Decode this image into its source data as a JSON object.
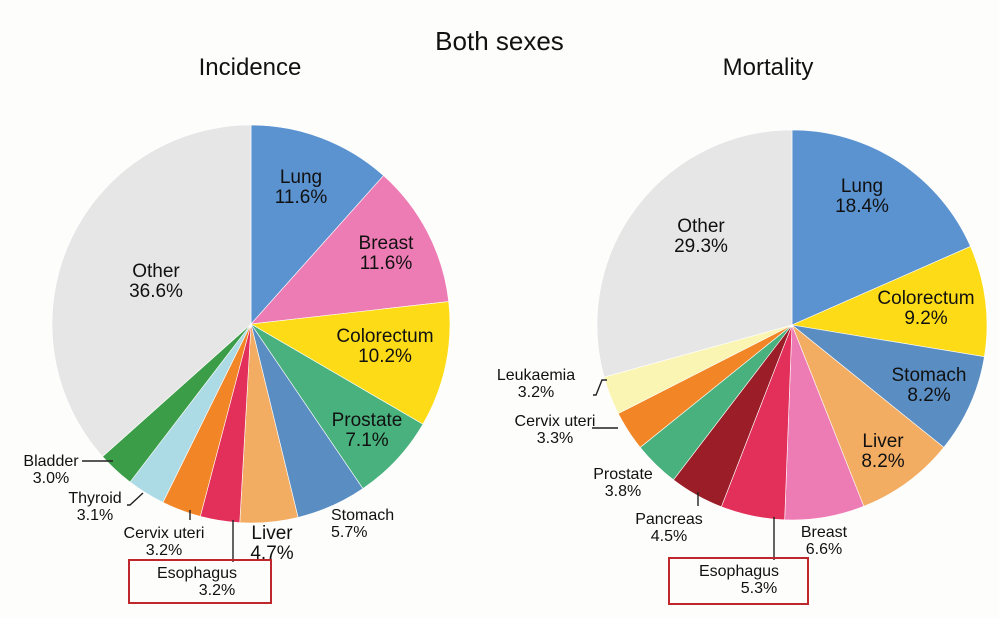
{
  "figure_title": "Both sexes",
  "chart_data": [
    {
      "type": "pie",
      "title": "Incidence",
      "unit": "%",
      "slices": [
        {
          "label": "Lung",
          "value": 11.6,
          "value_text": "11.6%",
          "color": "#5b93d0"
        },
        {
          "label": "Breast",
          "value": 11.6,
          "value_text": "11.6%",
          "color": "#ee7cb4"
        },
        {
          "label": "Colorectum",
          "value": 10.2,
          "value_text": "10.2%",
          "color": "#fddc17"
        },
        {
          "label": "Prostate",
          "value": 7.1,
          "value_text": "7.1%",
          "color": "#49b17d"
        },
        {
          "label": "Stomach",
          "value": 5.7,
          "value_text": "5.7%",
          "color": "#5a8ec3"
        },
        {
          "label": "Liver",
          "value": 4.7,
          "value_text": "4.7%",
          "color": "#f3ad63"
        },
        {
          "label": "Esophagus",
          "value": 3.2,
          "value_text": "3.2%",
          "color": "#e3305a",
          "highlighted": true
        },
        {
          "label": "Cervix uteri",
          "value": 3.2,
          "value_text": "3.2%",
          "color": "#f28627"
        },
        {
          "label": "Thyroid",
          "value": 3.1,
          "value_text": "3.1%",
          "color": "#acdbe6"
        },
        {
          "label": "Bladder",
          "value": 3.0,
          "value_text": "3.0%",
          "color": "#3c9d48"
        },
        {
          "label": "Other",
          "value": 36.6,
          "value_text": "36.6%",
          "color": "#e6e6e6"
        }
      ]
    },
    {
      "type": "pie",
      "title": "Mortality",
      "unit": "%",
      "slices": [
        {
          "label": "Lung",
          "value": 18.4,
          "value_text": "18.4%",
          "color": "#5b93d0"
        },
        {
          "label": "Colorectum",
          "value": 9.2,
          "value_text": "9.2%",
          "color": "#fddc17"
        },
        {
          "label": "Stomach",
          "value": 8.2,
          "value_text": "8.2%",
          "color": "#5a8ec3"
        },
        {
          "label": "Liver",
          "value": 8.2,
          "value_text": "8.2%",
          "color": "#f3ad63"
        },
        {
          "label": "Breast",
          "value": 6.6,
          "value_text": "6.6%",
          "color": "#ee7cb4"
        },
        {
          "label": "Esophagus",
          "value": 5.3,
          "value_text": "5.3%",
          "color": "#e3305a",
          "highlighted": true
        },
        {
          "label": "Pancreas",
          "value": 4.5,
          "value_text": "4.5%",
          "color": "#9b1d27"
        },
        {
          "label": "Prostate",
          "value": 3.8,
          "value_text": "3.8%",
          "color": "#49b17d"
        },
        {
          "label": "Cervix uteri",
          "value": 3.3,
          "value_text": "3.3%",
          "color": "#f28627"
        },
        {
          "label": "Leukaemia",
          "value": 3.2,
          "value_text": "3.2%",
          "color": "#fbf5b4"
        },
        {
          "label": "Other",
          "value": 29.3,
          "value_text": "29.3%",
          "color": "#e6e6e6"
        }
      ]
    }
  ]
}
